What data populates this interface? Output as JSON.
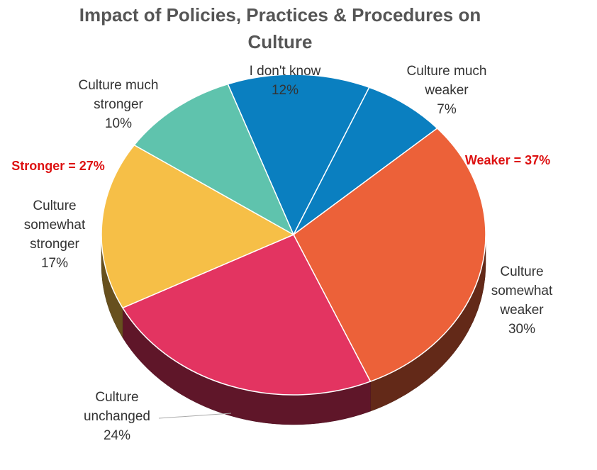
{
  "chart_data": {
    "type": "pie",
    "title": "Impact of Policies, Practices & Procedures on Culture",
    "title_lines": [
      "Impact of Policies, Practices & Procedures on",
      "Culture"
    ],
    "slices": [
      {
        "label": "I don't know",
        "label_lines": [
          "I don't know"
        ],
        "value": 12,
        "pct_text": "12%",
        "color": "#0a7fc0"
      },
      {
        "label": "Culture much weaker",
        "label_lines": [
          "Culture much",
          "weaker"
        ],
        "value": 7,
        "pct_text": "7%",
        "color": "#0a7fc0"
      },
      {
        "label": "Culture somewhat weaker",
        "label_lines": [
          "Culture",
          "somewhat",
          "weaker"
        ],
        "value": 30,
        "pct_text": "30%",
        "color": "#ec6139"
      },
      {
        "label": "Culture unchanged",
        "label_lines": [
          "Culture",
          "unchanged"
        ],
        "value": 24,
        "pct_text": "24%",
        "color": "#e33461"
      },
      {
        "label": "Culture somewhat stronger",
        "label_lines": [
          "Culture",
          "somewhat",
          "stronger"
        ],
        "value": 17,
        "pct_text": "17%",
        "color": "#f6bf47"
      },
      {
        "label": "Culture much stronger",
        "label_lines": [
          "Culture much",
          "stronger"
        ],
        "value": 10,
        "pct_text": "10%",
        "color": "#5fc3ad"
      }
    ],
    "group_labels": [
      {
        "text": "Stronger = 27%",
        "color": "#dd1111"
      },
      {
        "text": "Weaker = 37%",
        "color": "#dd1111"
      }
    ]
  }
}
